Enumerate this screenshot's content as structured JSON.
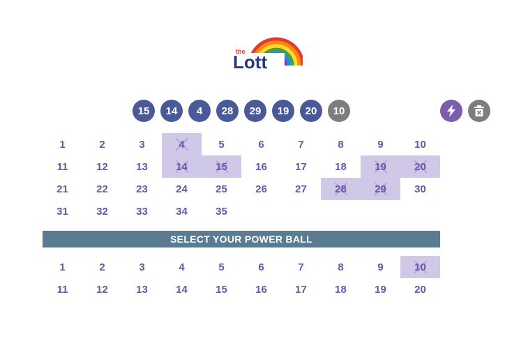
{
  "brand": {
    "logo_text": "Lott",
    "logo_prefix": "the"
  },
  "selected_numbers": [
    "15",
    "14",
    "4",
    "28",
    "29",
    "19",
    "20"
  ],
  "selected_power_ball": "10",
  "actions": {
    "quick_pick_icon": "lightning-icon",
    "clear_icon": "trash-icon"
  },
  "main_grid": {
    "numbers": [
      "1",
      "2",
      "3",
      "4",
      "5",
      "6",
      "7",
      "8",
      "9",
      "10",
      "11",
      "12",
      "13",
      "14",
      "15",
      "16",
      "17",
      "18",
      "19",
      "20",
      "21",
      "22",
      "23",
      "24",
      "25",
      "26",
      "27",
      "28",
      "29",
      "30",
      "31",
      "32",
      "33",
      "34",
      "35"
    ],
    "picked": [
      "4",
      "14",
      "15",
      "19",
      "20",
      "28",
      "29"
    ]
  },
  "power_section": {
    "banner": "SELECT YOUR POWER BALL"
  },
  "power_grid": {
    "numbers": [
      "1",
      "2",
      "3",
      "4",
      "5",
      "6",
      "7",
      "8",
      "9",
      "10",
      "11",
      "12",
      "13",
      "14",
      "15",
      "16",
      "17",
      "18",
      "19",
      "20"
    ],
    "picked": [
      "10"
    ]
  },
  "colors": {
    "ball": "#4a5a99",
    "power_ball": "#7d7d7d",
    "cell_text": "#6a55a6",
    "picked_bg": "#cfc8e6",
    "banner_bg": "#5b7b93",
    "quick_pick": "#7a5dab"
  }
}
